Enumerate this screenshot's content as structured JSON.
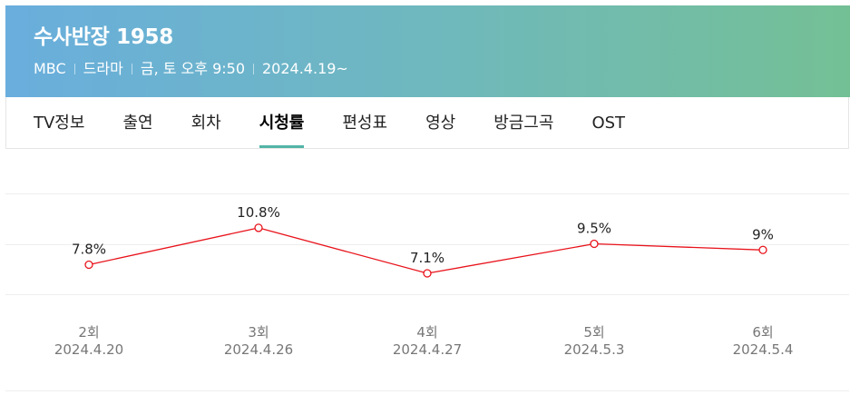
{
  "program": {
    "title": "수사반장 1958",
    "meta": [
      "MBC",
      "드라마",
      "금, 토 오후 9:50",
      "2024.4.19~"
    ]
  },
  "tabs": [
    {
      "label": "TV정보",
      "active": false
    },
    {
      "label": "출연",
      "active": false
    },
    {
      "label": "회차",
      "active": false
    },
    {
      "label": "시청률",
      "active": true
    },
    {
      "label": "편성표",
      "active": false
    },
    {
      "label": "영상",
      "active": false
    },
    {
      "label": "방금그곡",
      "active": false
    },
    {
      "label": "OST",
      "active": false
    }
  ],
  "colors": {
    "line": "#e8131b",
    "accent": "#52b5a6"
  },
  "chart_data": {
    "type": "line",
    "categories": [
      "2회",
      "3회",
      "4회",
      "5회",
      "6회"
    ],
    "dates": [
      "2024.4.20",
      "2024.4.26",
      "2024.4.27",
      "2024.5.3",
      "2024.5.4"
    ],
    "values": [
      7.8,
      10.8,
      7.1,
      9.5,
      9
    ],
    "labels": [
      "7.8%",
      "10.8%",
      "7.1%",
      "9.5%",
      "9%"
    ],
    "ylim": [
      5.4,
      13.6
    ],
    "grid": true,
    "legend": "none"
  }
}
